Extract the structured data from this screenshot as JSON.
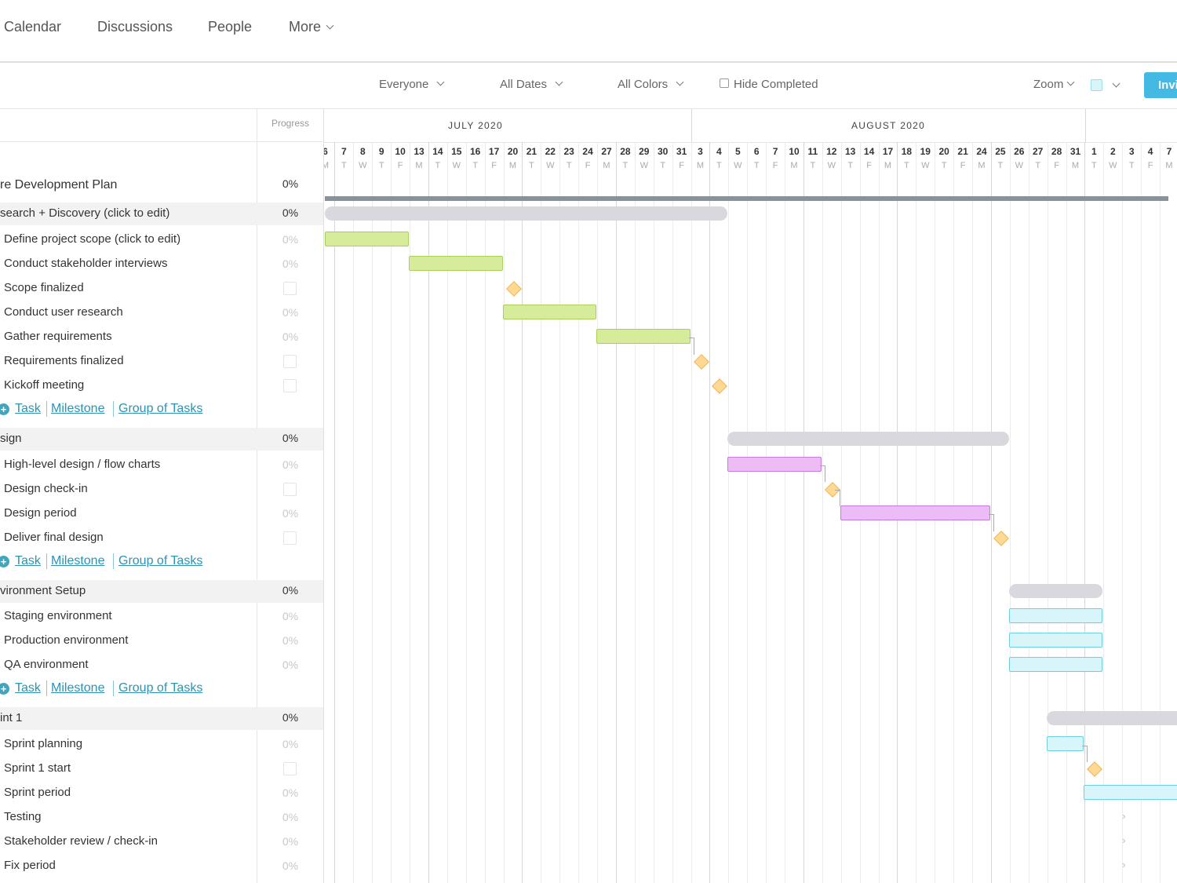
{
  "nav": {
    "items": [
      "Calendar",
      "Discussions",
      "People"
    ],
    "more_label": "More"
  },
  "toolbar": {
    "everyone": "Everyone",
    "all_dates": "All Dates",
    "all_colors": "All Colors",
    "hide_completed": "Hide Completed",
    "zoom": "Zoom",
    "invite_label": "Invi",
    "color_swatch": "#d8f6fa"
  },
  "grid": {
    "progress_header": "Progress"
  },
  "timeline": {
    "months": [
      "JULY 2020",
      "AUGUST 2020"
    ],
    "days": [
      {
        "n": "6",
        "d": "M"
      },
      {
        "n": "7",
        "d": "T"
      },
      {
        "n": "8",
        "d": "W"
      },
      {
        "n": "9",
        "d": "T"
      },
      {
        "n": "10",
        "d": "F"
      },
      {
        "n": "13",
        "d": "M"
      },
      {
        "n": "14",
        "d": "T"
      },
      {
        "n": "15",
        "d": "W"
      },
      {
        "n": "16",
        "d": "T"
      },
      {
        "n": "17",
        "d": "F"
      },
      {
        "n": "20",
        "d": "M"
      },
      {
        "n": "21",
        "d": "T"
      },
      {
        "n": "22",
        "d": "W"
      },
      {
        "n": "23",
        "d": "T"
      },
      {
        "n": "24",
        "d": "F"
      },
      {
        "n": "27",
        "d": "M"
      },
      {
        "n": "28",
        "d": "T"
      },
      {
        "n": "29",
        "d": "W"
      },
      {
        "n": "30",
        "d": "T"
      },
      {
        "n": "31",
        "d": "F"
      },
      {
        "n": "3",
        "d": "M"
      },
      {
        "n": "4",
        "d": "T"
      },
      {
        "n": "5",
        "d": "W"
      },
      {
        "n": "6",
        "d": "T"
      },
      {
        "n": "7",
        "d": "F"
      },
      {
        "n": "10",
        "d": "M"
      },
      {
        "n": "11",
        "d": "T"
      },
      {
        "n": "12",
        "d": "W"
      },
      {
        "n": "13",
        "d": "T"
      },
      {
        "n": "14",
        "d": "F"
      },
      {
        "n": "17",
        "d": "M"
      },
      {
        "n": "18",
        "d": "T"
      },
      {
        "n": "19",
        "d": "W"
      },
      {
        "n": "20",
        "d": "T"
      },
      {
        "n": "21",
        "d": "F"
      },
      {
        "n": "24",
        "d": "M"
      },
      {
        "n": "25",
        "d": "T"
      },
      {
        "n": "26",
        "d": "W"
      },
      {
        "n": "27",
        "d": "T"
      },
      {
        "n": "28",
        "d": "F"
      },
      {
        "n": "31",
        "d": "M"
      },
      {
        "n": "1",
        "d": "T"
      },
      {
        "n": "2",
        "d": "W"
      },
      {
        "n": "3",
        "d": "T"
      },
      {
        "n": "4",
        "d": "F"
      },
      {
        "n": "7",
        "d": "M"
      }
    ]
  },
  "add_links": {
    "task": "Task",
    "milestone": "Milestone",
    "group": "Group of Tasks"
  },
  "rows": [
    {
      "kind": "plan",
      "name": "re Development Plan",
      "progress": "0%",
      "bar": {
        "type": "plan",
        "start": 0,
        "end": 45
      }
    },
    {
      "kind": "group",
      "name": "search + Discovery (click to edit)",
      "progress": "0%",
      "bar": {
        "type": "gray",
        "start": 0,
        "end": 21.5
      }
    },
    {
      "kind": "task",
      "name": "Define project scope (click to edit)",
      "progress": "0%",
      "bar": {
        "type": "green",
        "start": 0,
        "end": 4.5
      }
    },
    {
      "kind": "task",
      "name": "Conduct stakeholder interviews",
      "progress": "0%",
      "bar": {
        "type": "green",
        "start": 4.5,
        "end": 9.5
      }
    },
    {
      "kind": "milestone",
      "name": "Scope finalized",
      "at": 10
    },
    {
      "kind": "task",
      "name": "Conduct user research",
      "progress": "0%",
      "bar": {
        "type": "green",
        "start": 9.5,
        "end": 14.5
      }
    },
    {
      "kind": "task",
      "name": "Gather requirements",
      "progress": "0%",
      "bar": {
        "type": "green",
        "start": 14.5,
        "end": 19.5
      }
    },
    {
      "kind": "milestone",
      "name": "Requirements finalized",
      "at": 20
    },
    {
      "kind": "milestone",
      "name": "Kickoff meeting",
      "at": 21
    },
    {
      "kind": "add"
    },
    {
      "kind": "group",
      "name": "sign",
      "progress": "0%",
      "bar": {
        "type": "gray",
        "start": 21.5,
        "end": 36.5
      }
    },
    {
      "kind": "task",
      "name": "High-level design / flow charts",
      "progress": "0%",
      "bar": {
        "type": "purple",
        "start": 21.5,
        "end": 26.5
      }
    },
    {
      "kind": "milestone",
      "name": "Design check-in",
      "at": 27
    },
    {
      "kind": "task",
      "name": "Design period",
      "progress": "0%",
      "bar": {
        "type": "purple",
        "start": 27.5,
        "end": 35.5
      }
    },
    {
      "kind": "milestone",
      "name": "Deliver final design",
      "at": 36
    },
    {
      "kind": "add"
    },
    {
      "kind": "group",
      "name": "vironment Setup",
      "progress": "0%",
      "bar": {
        "type": "gray",
        "start": 36.5,
        "end": 41.5
      }
    },
    {
      "kind": "task",
      "name": "Staging environment",
      "progress": "0%",
      "bar": {
        "type": "cyan",
        "start": 36.5,
        "end": 41.5
      }
    },
    {
      "kind": "task",
      "name": "Production environment",
      "progress": "0%",
      "bar": {
        "type": "cyan",
        "start": 36.5,
        "end": 41.5
      }
    },
    {
      "kind": "task",
      "name": "QA environment",
      "progress": "0%",
      "bar": {
        "type": "cyan",
        "start": 36.5,
        "end": 41.5
      }
    },
    {
      "kind": "add"
    },
    {
      "kind": "group",
      "name": "int 1",
      "progress": "0%",
      "bar": {
        "type": "gray",
        "start": 38.5,
        "end": 46
      }
    },
    {
      "kind": "task",
      "name": "Sprint planning",
      "progress": "0%",
      "bar": {
        "type": "cyan",
        "start": 38.5,
        "end": 40.5
      }
    },
    {
      "kind": "milestone",
      "name": "Sprint 1 start",
      "at": 41
    },
    {
      "kind": "task",
      "name": "Sprint period",
      "progress": "0%",
      "bar": {
        "type": "cyan",
        "start": 40.5,
        "end": 46
      }
    },
    {
      "kind": "task",
      "name": "Testing",
      "progress": "0%",
      "caret": true
    },
    {
      "kind": "task",
      "name": "Stakeholder review / check-in",
      "progress": "0%",
      "caret": true
    },
    {
      "kind": "task",
      "name": "Fix period",
      "progress": "0%",
      "caret": true
    }
  ]
}
